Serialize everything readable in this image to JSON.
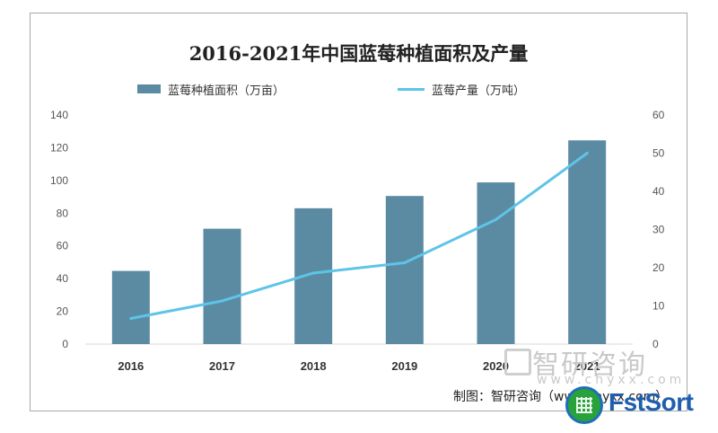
{
  "chart_data": {
    "type": "bar",
    "title": "2016-2021年中国蓝莓种植面积及产量",
    "categories": [
      "2016",
      "2017",
      "2018",
      "2019",
      "2020",
      "2021"
    ],
    "series": [
      {
        "name": "蓝莓种植面积（万亩）",
        "type": "bar",
        "axis": "left",
        "values": [
          44.7,
          70.5,
          83.0,
          90.5,
          98.8,
          124.5
        ],
        "color": "#5b8ba3"
      },
      {
        "name": "蓝莓产量（万吨）",
        "type": "line",
        "axis": "right",
        "values": [
          6.7,
          11.3,
          18.6,
          21.3,
          32.6,
          50.0
        ],
        "color": "#5ec4e8"
      }
    ],
    "y_left": {
      "ylim": [
        0,
        140
      ],
      "ticks": [
        0,
        20,
        40,
        60,
        80,
        100,
        120,
        140
      ]
    },
    "y_right": {
      "ylim": [
        0,
        60
      ],
      "ticks": [
        0,
        10,
        20,
        30,
        40,
        50,
        60
      ]
    },
    "legend_position": "top",
    "grid": false
  },
  "source_text": "制图：智研咨询（www.chyxx.com）",
  "watermark": {
    "brand": "智研咨询",
    "url": "www.chyxx.com"
  },
  "badge": {
    "text": "FstSort",
    "icon": "globe-grid-icon",
    "color_green": "#2aa23c",
    "color_blue": "#1f5fae"
  }
}
